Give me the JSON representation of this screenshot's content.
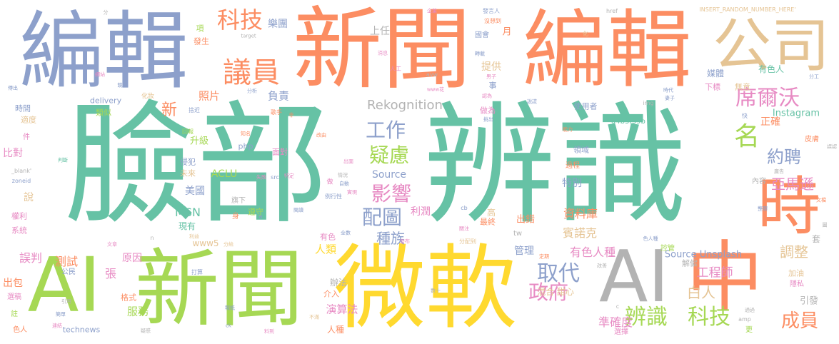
{
  "palette": {
    "green": "#66c2a5",
    "orange": "#fc8d62",
    "blue": "#8da0cb",
    "pink": "#e78ac3",
    "lime": "#a6d854",
    "yellow": "#ffd92f",
    "tan": "#e5c494",
    "gray": "#b3b3b3"
  },
  "words": [
    {
      "text": "臉部",
      "color": "green"
    },
    {
      "text": "辨識",
      "color": "green"
    },
    {
      "text": "編輯",
      "color": "blue"
    },
    {
      "text": "新聞",
      "color": "orange"
    },
    {
      "text": "編輯",
      "color": "orange"
    },
    {
      "text": "公司",
      "color": "tan"
    },
    {
      "text": "微軟",
      "color": "yellow"
    },
    {
      "text": "新聞",
      "color": "lime"
    },
    {
      "text": "AI",
      "color": "lime"
    },
    {
      "text": "AI",
      "color": "gray"
    },
    {
      "text": "中",
      "color": "orange"
    },
    {
      "text": "時",
      "color": "orange"
    },
    {
      "text": "議員",
      "color": "orange"
    },
    {
      "text": "科技",
      "color": "orange"
    },
    {
      "text": "席爾沃",
      "color": "pink"
    },
    {
      "text": "名",
      "color": "lime"
    },
    {
      "text": "約聘",
      "color": "blue"
    },
    {
      "text": "亞馬遜",
      "color": "pink"
    },
    {
      "text": "工作",
      "color": "blue"
    },
    {
      "text": "疑慮",
      "color": "lime"
    },
    {
      "text": "影響",
      "color": "pink"
    },
    {
      "text": "配圖",
      "color": "blue"
    },
    {
      "text": "種族",
      "color": "blue"
    },
    {
      "text": "取代",
      "color": "blue"
    },
    {
      "text": "政府",
      "color": "pink"
    },
    {
      "text": "辨識",
      "color": "lime"
    },
    {
      "text": "科技",
      "color": "lime"
    },
    {
      "text": "成員",
      "color": "orange"
    },
    {
      "text": "白人",
      "color": "tan"
    },
    {
      "text": "調整",
      "color": "tan"
    },
    {
      "text": "工程師",
      "color": "pink"
    },
    {
      "text": "Rekognition",
      "color": "gray"
    },
    {
      "text": "Instagram",
      "color": "green"
    },
    {
      "text": "Source Unsplash",
      "color": "blue"
    },
    {
      "text": "MSN",
      "color": "green"
    },
    {
      "text": "ACLU",
      "color": "lime"
    },
    {
      "text": "Source",
      "color": "blue"
    },
    {
      "text": "有色人種",
      "color": "pink"
    },
    {
      "text": "準確度",
      "color": "pink"
    },
    {
      "text": "資料庫",
      "color": "orange"
    },
    {
      "text": "賓諾克",
      "color": "tan"
    },
    {
      "text": "測試",
      "color": "orange"
    },
    {
      "text": "服務",
      "color": "lime"
    },
    {
      "text": "演算法",
      "color": "pink"
    },
    {
      "text": "照片",
      "color": "orange"
    },
    {
      "text": "負責",
      "color": "blue"
    },
    {
      "text": "提供",
      "color": "tan"
    },
    {
      "text": "樂團",
      "color": "blue"
    },
    {
      "text": "上任",
      "color": "gray"
    },
    {
      "text": "新",
      "color": "orange"
    },
    {
      "text": "比對",
      "color": "pink"
    },
    {
      "text": "說",
      "color": "tan"
    },
    {
      "text": "誤判",
      "color": "pink"
    },
    {
      "text": "出包",
      "color": "orange"
    },
    {
      "text": "張",
      "color": "pink"
    },
    {
      "text": "原因",
      "color": "pink"
    },
    {
      "text": "人類",
      "color": "yellow"
    },
    {
      "text": "管理",
      "color": "blue"
    },
    {
      "text": "正確",
      "color": "orange"
    },
    {
      "text": "有色人",
      "color": "green"
    },
    {
      "text": "引發",
      "color": "gray"
    },
    {
      "text": "特別",
      "color": "blue"
    },
    {
      "text": "利潤",
      "color": "pink"
    },
    {
      "text": "出錯",
      "color": "orange"
    },
    {
      "text": "美國",
      "color": "blue"
    },
    {
      "text": "升級",
      "color": "lime"
    },
    {
      "text": "現有",
      "color": "green"
    },
    {
      "text": "www5",
      "color": "tan"
    },
    {
      "text": "時間",
      "color": "blue"
    },
    {
      "text": "適度",
      "color": "tan"
    },
    {
      "text": "類似",
      "color": "lime"
    },
    {
      "text": "delivery",
      "color": "blue"
    },
    {
      "text": "辦法",
      "color": "gray"
    },
    {
      "text": "介入",
      "color": "orange"
    },
    {
      "text": "人種",
      "color": "orange"
    },
    {
      "text": "混合 甜心",
      "color": "tan"
    },
    {
      "text": "使用者",
      "color": "blue"
    },
    {
      "text": "a4b3f35b",
      "color": "green"
    },
    {
      "text": "媒體",
      "color": "blue"
    },
    {
      "text": "下標",
      "color": "pink"
    },
    {
      "text": "無意",
      "color": "tan"
    },
    {
      "text": "INSERT_RANDOM_NUMBER_HERE'",
      "color": "tan"
    },
    {
      "text": "technews",
      "color": "blue"
    },
    {
      "text": "選稿",
      "color": "pink"
    },
    {
      "text": "色人",
      "color": "orange"
    },
    {
      "text": "php",
      "color": "blue"
    },
    {
      "text": "旗下",
      "color": "gray"
    },
    {
      "text": "遵守",
      "color": "lime"
    },
    {
      "text": "面對",
      "color": "pink"
    },
    {
      "text": "侵犯",
      "color": "blue"
    },
    {
      "text": "未來",
      "color": "tan"
    },
    {
      "text": "領域",
      "color": "blue"
    },
    {
      "text": "過程",
      "color": "orange"
    },
    {
      "text": "內容",
      "color": "gray"
    },
    {
      "text": "格式",
      "color": "orange"
    },
    {
      "text": "公民",
      "color": "blue"
    },
    {
      "text": "權利",
      "color": "pink"
    },
    {
      "text": "系統",
      "color": "pink"
    },
    {
      "text": "月",
      "color": "orange"
    },
    {
      "text": "發生",
      "color": "orange"
    },
    {
      "text": "項",
      "color": "lime"
    },
    {
      "text": "國會",
      "color": "blue"
    },
    {
      "text": "人工",
      "color": "pink"
    },
    {
      "text": "事",
      "color": "blue"
    },
    {
      "text": "做為",
      "color": "pink"
    },
    {
      "text": "歌手",
      "color": "orange"
    },
    {
      "text": "有色",
      "color": "pink"
    },
    {
      "text": "最終",
      "color": "orange"
    },
    {
      "text": "高",
      "color": "tan"
    },
    {
      "text": "tw",
      "color": "gray"
    },
    {
      "text": "選擇",
      "color": "pink"
    },
    {
      "text": "解僱",
      "color": "gray"
    },
    {
      "text": "加油",
      "color": "tan"
    },
    {
      "text": "隱私",
      "color": "pink"
    },
    {
      "text": "皮膚",
      "color": "orange"
    },
    {
      "text": "套",
      "color": "gray"
    },
    {
      "text": "控管",
      "color": "lime"
    },
    {
      "text": "更",
      "color": "lime"
    },
    {
      "text": "註",
      "color": "lime"
    },
    {
      "text": "件",
      "color": "pink"
    },
    {
      "text": "分",
      "color": "gray"
    },
    {
      "text": "target",
      "color": "gray"
    },
    {
      "text": "href",
      "color": "gray"
    },
    {
      "text": "企業",
      "color": "pink"
    },
    {
      "text": "發言人",
      "color": "blue"
    },
    {
      "text": "沒想到",
      "color": "orange"
    },
    {
      "text": "化妝",
      "color": "tan"
    },
    {
      "text": "分析",
      "color": "blue"
    },
    {
      "text": "www花",
      "color": "pink"
    },
    {
      "text": "img",
      "color": "gray"
    },
    {
      "text": "_blank'",
      "color": "gray"
    },
    {
      "text": "zoneid",
      "color": "blue"
    },
    {
      "text": "src",
      "color": "blue"
    },
    {
      "text": "cb",
      "color": "blue"
    },
    {
      "text": "amp",
      "color": "gray"
    },
    {
      "text": "ck",
      "color": "blue"
    },
    {
      "text": "n",
      "color": "gray"
    },
    {
      "text": "c",
      "color": "gray"
    },
    {
      "text": "avw",
      "color": "gray"
    },
    {
      "text": "分配到",
      "color": "tan"
    },
    {
      "text": "例行性",
      "color": "blue"
    },
    {
      "text": "打算",
      "color": "blue"
    },
    {
      "text": "報紙",
      "color": "blue"
    },
    {
      "text": "疑惑",
      "color": "gray"
    },
    {
      "text": "簡單",
      "color": "blue"
    },
    {
      "text": "引用",
      "color": "gray"
    },
    {
      "text": "數十",
      "color": "gray"
    },
    {
      "text": "不滿",
      "color": "tan"
    },
    {
      "text": "料到",
      "color": "pink"
    },
    {
      "text": "知名",
      "color": "orange"
    },
    {
      "text": "能力",
      "color": "orange"
    },
    {
      "text": "廣告",
      "color": "gray"
    },
    {
      "text": "文檔",
      "color": "orange"
    },
    {
      "text": "轉載",
      "color": "blue"
    },
    {
      "text": "消息",
      "color": "pink"
    },
    {
      "text": "傳出",
      "color": "blue"
    },
    {
      "text": "網站",
      "color": "pink"
    },
    {
      "text": "分工",
      "color": "blue"
    },
    {
      "text": "時代",
      "color": "blue"
    },
    {
      "text": "妻子",
      "color": "blue"
    },
    {
      "text": "男子",
      "color": "pink"
    },
    {
      "text": "認為",
      "color": "pink"
    },
    {
      "text": "說謊",
      "color": "blue"
    },
    {
      "text": "挑出",
      "color": "blue"
    },
    {
      "text": "非",
      "color": "orange"
    },
    {
      "text": "判斷",
      "color": "green"
    },
    {
      "text": "特定",
      "color": "pink"
    },
    {
      "text": "失敗",
      "color": "pink"
    },
    {
      "text": "情況",
      "color": "gray"
    },
    {
      "text": "實現",
      "color": "pink"
    },
    {
      "text": "自動",
      "color": "blue"
    },
    {
      "text": "閱讀",
      "color": "blue"
    },
    {
      "text": "關注",
      "color": "pink"
    },
    {
      "text": "全數",
      "color": "blue"
    },
    {
      "text": "發布",
      "color": "pink"
    },
    {
      "text": "改善",
      "color": "gray"
    },
    {
      "text": "定期",
      "color": "orange"
    },
    {
      "text": "色人種",
      "color": "blue"
    },
    {
      "text": "整體",
      "color": "blue"
    },
    {
      "text": "誤認",
      "color": "gray"
    },
    {
      "text": "連結",
      "color": "pink"
    },
    {
      "text": "通過",
      "color": "gray"
    },
    {
      "text": "圖",
      "color": "gray"
    },
    {
      "text": "快",
      "color": "blue"
    },
    {
      "text": "化",
      "color": "tan"
    },
    {
      "text": "利益",
      "color": "tan"
    },
    {
      "text": "分給",
      "color": "tan"
    },
    {
      "text": "改由",
      "color": "orange"
    },
    {
      "text": "出面",
      "color": "pink"
    },
    {
      "text": "捨近",
      "color": "blue"
    },
    {
      "text": "回報",
      "color": "lime"
    },
    {
      "text": "身",
      "color": "orange"
    },
    {
      "text": "做",
      "color": "pink"
    },
    {
      "text": "文章",
      "color": "pink"
    },
    {
      "text": "a",
      "color": "blue"
    },
    {
      "text": "鏡",
      "color": "blue"
    }
  ]
}
